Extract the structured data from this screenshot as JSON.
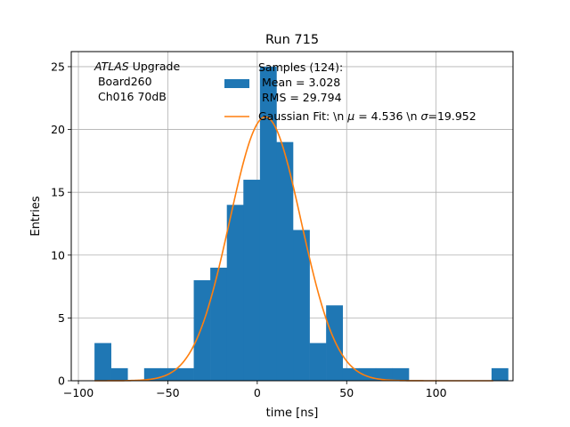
{
  "chart_data": {
    "type": "bar",
    "title": "Run 715",
    "xlabel": "time [ns]",
    "ylabel": "Entries",
    "xlim": [
      -104,
      143
    ],
    "ylim": [
      0,
      26.2
    ],
    "xticks": [
      -100,
      -50,
      0,
      50,
      100
    ],
    "xtick_labels": [
      "−100",
      "−50",
      "0",
      "50",
      "100"
    ],
    "yticks": [
      0,
      5,
      10,
      15,
      20,
      25
    ],
    "ytick_labels": [
      "0",
      "5",
      "10",
      "15",
      "20",
      "25"
    ],
    "grid": true,
    "histogram": {
      "bin_width": 9.25,
      "bin_start": -91,
      "counts": [
        3,
        1,
        0,
        1,
        1,
        1,
        8,
        9,
        14,
        16,
        25,
        19,
        12,
        3,
        6,
        1,
        1,
        1,
        1,
        0,
        0,
        0,
        0,
        0,
        1
      ],
      "color": "#1f77b4"
    },
    "gaussian_fit": {
      "mu": 4.536,
      "sigma": 19.952,
      "amplitude": 21.0,
      "x_range": [
        -91,
        132
      ],
      "color": "#ff7f0e"
    },
    "annotation": {
      "line1_italic": "ATLAS",
      "line1_rest": " Upgrade",
      "line2": " Board260",
      "line3": " Ch016 70dB"
    },
    "legend": {
      "placement": "top-center",
      "samples_line1": "Samples (124):",
      "samples_line2": " Mean = 3.028",
      "samples_line3": " RMS = 29.794",
      "fit_pre": "Gaussian Fit: \\n ",
      "fit_mu_sym": "μ",
      "fit_mid": " = 4.536 \\n ",
      "fit_sigma_sym": "σ",
      "fit_post": "=19.952"
    }
  }
}
